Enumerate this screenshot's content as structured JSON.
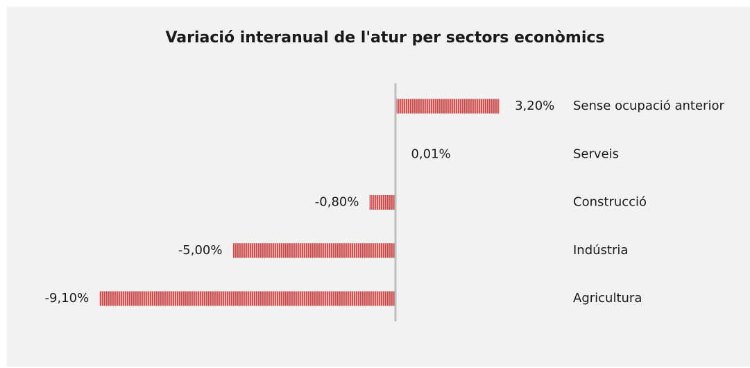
{
  "chart_data": {
    "type": "bar",
    "orientation": "horizontal",
    "title": "Variació interanual de l'atur per sectors econòmics",
    "categories": [
      "Sense ocupació anterior",
      "Serveis",
      "Construcció",
      "Indústria",
      "Agricultura"
    ],
    "values": [
      3.2,
      0.01,
      -0.8,
      -5.0,
      -9.1
    ],
    "value_labels": [
      "3,20%",
      "0,01%",
      "-0,80%",
      "-5,00%",
      "-9,10%"
    ],
    "color": "#d0494a",
    "xlim": [
      -10,
      10
    ]
  }
}
